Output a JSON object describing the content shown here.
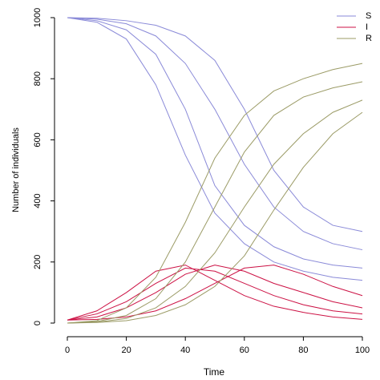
{
  "chart_data": {
    "type": "line",
    "xlabel": "Time",
    "ylabel": "Number of individuals",
    "x": [
      0,
      10,
      20,
      30,
      40,
      50,
      60,
      70,
      80,
      90,
      100
    ],
    "xlim": [
      0,
      100
    ],
    "xticks": [
      0,
      20,
      40,
      60,
      80,
      100
    ],
    "ylim": [
      0,
      1000
    ],
    "yticks": [
      0,
      200,
      400,
      600,
      800,
      1000
    ],
    "legend": "top-right",
    "series": [
      {
        "name": "S",
        "color": "#8a8ad8",
        "runs": [
          [
            1000,
            990,
            960,
            880,
            700,
            450,
            320,
            250,
            210,
            190,
            180
          ],
          [
            1000,
            995,
            980,
            940,
            850,
            700,
            520,
            380,
            300,
            260,
            240
          ],
          [
            1000,
            985,
            930,
            780,
            550,
            360,
            260,
            200,
            170,
            150,
            140
          ],
          [
            1000,
            998,
            990,
            975,
            940,
            860,
            700,
            500,
            380,
            320,
            300
          ]
        ]
      },
      {
        "name": "I",
        "color": "#cc1144",
        "runs": [
          [
            10,
            30,
            70,
            130,
            180,
            170,
            130,
            90,
            60,
            40,
            30
          ],
          [
            10,
            20,
            50,
            100,
            160,
            190,
            170,
            130,
            100,
            70,
            50
          ],
          [
            10,
            40,
            100,
            170,
            190,
            140,
            90,
            55,
            35,
            20,
            12
          ],
          [
            10,
            12,
            20,
            40,
            80,
            130,
            180,
            190,
            160,
            120,
            90
          ]
        ]
      },
      {
        "name": "R",
        "color": "#9b9b66",
        "runs": [
          [
            0,
            5,
            25,
            80,
            200,
            380,
            560,
            680,
            740,
            770,
            790
          ],
          [
            0,
            3,
            15,
            50,
            120,
            230,
            380,
            520,
            620,
            690,
            730
          ],
          [
            0,
            8,
            50,
            150,
            330,
            540,
            680,
            760,
            800,
            830,
            850
          ],
          [
            0,
            2,
            8,
            25,
            60,
            120,
            220,
            370,
            510,
            620,
            690
          ]
        ]
      }
    ]
  }
}
